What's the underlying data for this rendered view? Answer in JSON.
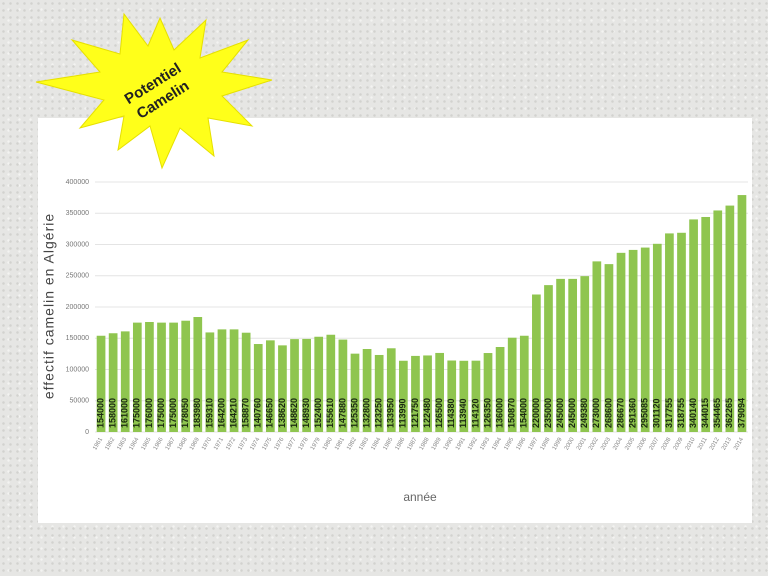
{
  "badge": [
    "Potentiel",
    "Camelin"
  ],
  "chart_data": {
    "type": "bar",
    "y_label": "effectif camelin en Algérie",
    "x_label": "année",
    "categories": [
      "1961",
      "1962",
      "1963",
      "1964",
      "1965",
      "1966",
      "1967",
      "1968",
      "1969",
      "1970",
      "1971",
      "1972",
      "1973",
      "1974",
      "1975",
      "1976",
      "1977",
      "1978",
      "1979",
      "1980",
      "1981",
      "1982",
      "1983",
      "1984",
      "1985",
      "1986",
      "1987",
      "1988",
      "1989",
      "1990",
      "1991",
      "1992",
      "1993",
      "1994",
      "1995",
      "1996",
      "1997",
      "1998",
      "1999",
      "2000",
      "2001",
      "2002",
      "2003",
      "2004",
      "2005",
      "2006",
      "2007",
      "2008",
      "2009",
      "2010",
      "2011",
      "2012",
      "2013",
      "2014"
    ],
    "values": [
      154000,
      158000,
      161000,
      175000,
      176000,
      175000,
      175000,
      178050,
      183980,
      159310,
      164200,
      164210,
      158870,
      140760,
      146650,
      138620,
      148620,
      148930,
      152400,
      155610,
      147880,
      125350,
      132800,
      123250,
      133950,
      113990,
      121750,
      122480,
      126500,
      114380,
      113940,
      114120,
      126350,
      136000,
      150870,
      154000,
      220000,
      235000,
      245000,
      245000,
      249380,
      273000,
      268600,
      286670,
      291360,
      295085,
      301120,
      317755,
      318755,
      340140,
      344015,
      354465,
      362265,
      379094
    ],
    "color": "#8fc54f",
    "ylim": [
      0,
      400000
    ],
    "yticks": [
      0,
      50000,
      100000,
      150000,
      200000,
      250000,
      300000,
      350000,
      400000
    ],
    "grid": true
  }
}
